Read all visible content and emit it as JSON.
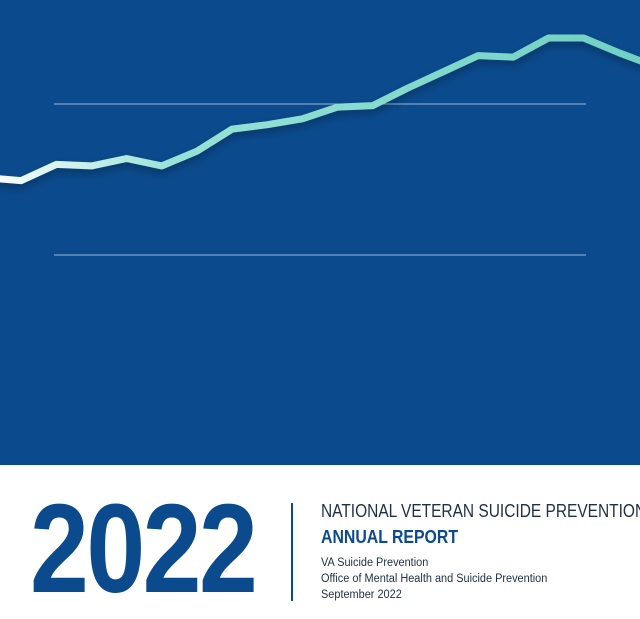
{
  "cover": {
    "year": "2022",
    "title": "NATIONAL VETERAN SUICIDE PREVENTION",
    "subtitle": "ANNUAL REPORT",
    "organization": "VA Suicide Prevention",
    "office": "Office of Mental Health and Suicide Prevention",
    "date": "September 2022"
  },
  "colors": {
    "brand_blue": "#0b4a8c",
    "line_start": "#ffffff",
    "line_end": "#6ed0c2",
    "text_dark": "#1f2f45",
    "gridline": "#9fb6d6"
  },
  "graphic": {
    "series": [
      0.05,
      0.03,
      0.14,
      0.13,
      0.18,
      0.13,
      0.23,
      0.38,
      0.41,
      0.45,
      0.53,
      0.54,
      0.66,
      0.77,
      0.88,
      0.87,
      1.0,
      1.0,
      0.9,
      0.81
    ]
  }
}
